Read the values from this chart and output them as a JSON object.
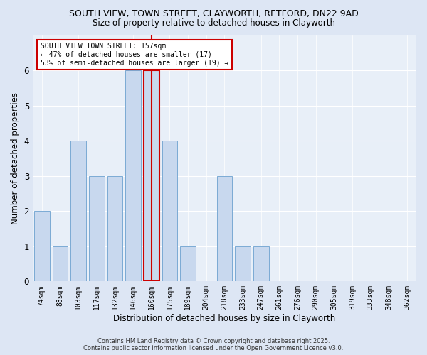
{
  "title_line1": "SOUTH VIEW, TOWN STREET, CLAYWORTH, RETFORD, DN22 9AD",
  "title_line2": "Size of property relative to detached houses in Clayworth",
  "xlabel": "Distribution of detached houses by size in Clayworth",
  "ylabel": "Number of detached properties",
  "categories": [
    "74sqm",
    "88sqm",
    "103sqm",
    "117sqm",
    "132sqm",
    "146sqm",
    "160sqm",
    "175sqm",
    "189sqm",
    "204sqm",
    "218sqm",
    "233sqm",
    "247sqm",
    "261sqm",
    "276sqm",
    "290sqm",
    "305sqm",
    "319sqm",
    "333sqm",
    "348sqm",
    "362sqm"
  ],
  "values": [
    2,
    1,
    4,
    3,
    3,
    6,
    6,
    4,
    1,
    0,
    3,
    1,
    1,
    0,
    0,
    0,
    0,
    0,
    0,
    0,
    0
  ],
  "bar_color": "#c8d8ee",
  "bar_edge_color": "#7baad4",
  "highlight_bar_index": 6,
  "highlight_edge_color": "#cc0000",
  "vline_color": "#cc0000",
  "ylim": [
    0,
    7
  ],
  "yticks": [
    0,
    1,
    2,
    3,
    4,
    5,
    6
  ],
  "annotation_text": "SOUTH VIEW TOWN STREET: 157sqm\n← 47% of detached houses are smaller (17)\n53% of semi-detached houses are larger (19) →",
  "annotation_box_color": "#ffffff",
  "annotation_edge_color": "#cc0000",
  "footer_text": "Contains HM Land Registry data © Crown copyright and database right 2025.\nContains public sector information licensed under the Open Government Licence v3.0.",
  "bg_color": "#dde6f4",
  "plot_bg_color": "#e8eff8"
}
